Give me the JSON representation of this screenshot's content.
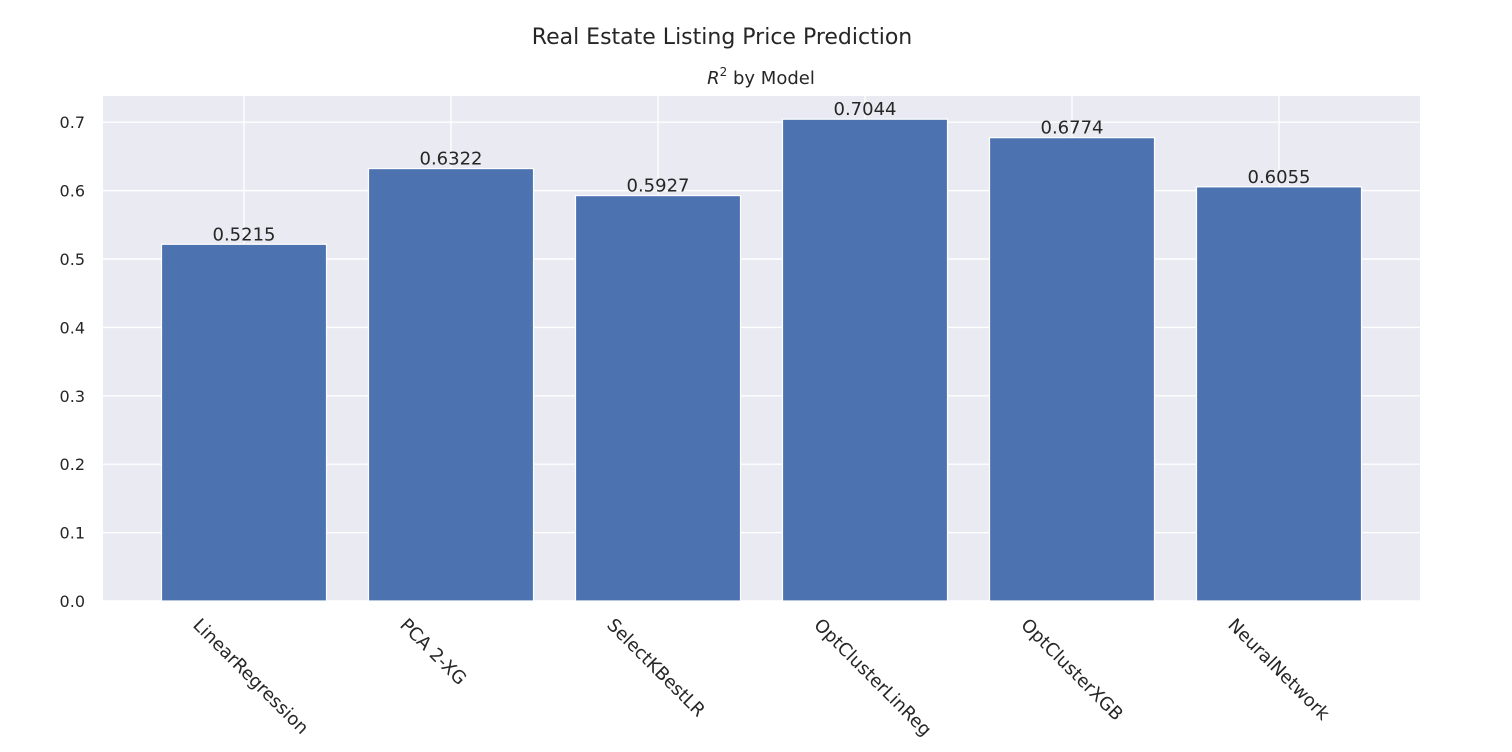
{
  "chart_data": {
    "type": "bar",
    "title": "Real Estate Listing Price Prediction",
    "subtitle_prefix": "R",
    "subtitle_superscript": "2",
    "subtitle_suffix": " by Model",
    "xlabel": "",
    "ylabel": "",
    "categories": [
      "LinearRegression",
      "PCA 2-XG",
      "SelectKBestLR",
      "OptClusterLinReg",
      "OptClusterXGB",
      "NeuralNetwork"
    ],
    "values": [
      0.5215,
      0.6322,
      0.5927,
      0.7044,
      0.6774,
      0.6055
    ],
    "data_labels": [
      "0.5215",
      "0.6322",
      "0.5927",
      "0.7044",
      "0.6774",
      "0.6055"
    ],
    "yticks": [
      0.0,
      0.1,
      0.2,
      0.3,
      0.4,
      0.5,
      0.6,
      0.7
    ],
    "ytick_labels": [
      "0.0",
      "0.1",
      "0.2",
      "0.3",
      "0.4",
      "0.5",
      "0.6",
      "0.7"
    ],
    "ylim": [
      0,
      0.7383
    ],
    "grid": true,
    "legend": "none",
    "colors": {
      "bar": "#4c72b0",
      "plot_background": "#eaeaf2",
      "grid": "#ffffff",
      "text": "#262626"
    }
  }
}
